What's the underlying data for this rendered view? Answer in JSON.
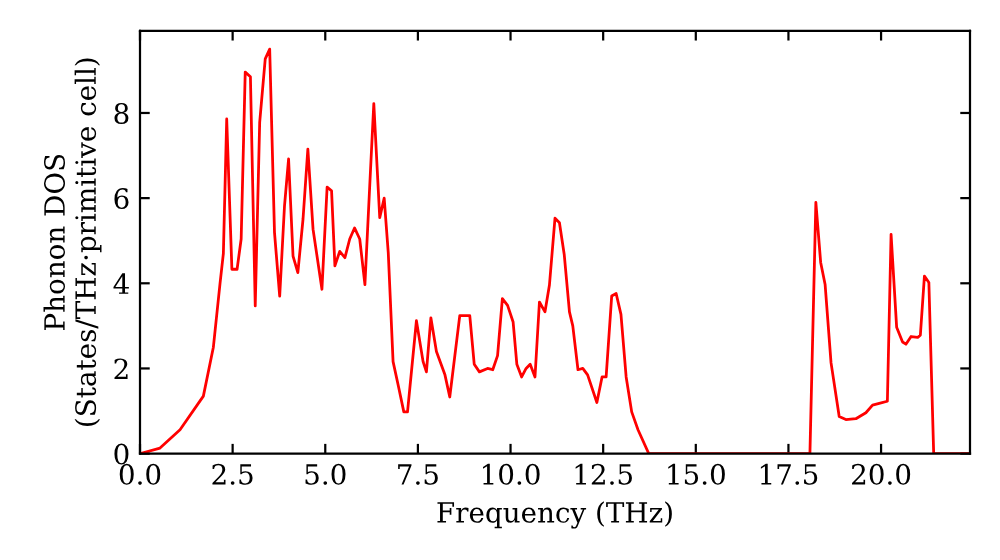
{
  "chart_data": {
    "type": "line",
    "xlabel": "Frequency (THz)",
    "ylabel": "Phonon DOS\n(States/THz·primitive cell)",
    "x": [
      0,
      0.54,
      1.08,
      1.71,
      1.98,
      2.16,
      2.25,
      2.34,
      2.48,
      2.62,
      2.73,
      2.84,
      2.98,
      3.11,
      3.23,
      3.38,
      3.5,
      3.63,
      3.77,
      3.9,
      4.01,
      4.13,
      4.26,
      4.4,
      4.53,
      4.67,
      4.91,
      5.05,
      5.17,
      5.26,
      5.39,
      5.53,
      5.66,
      5.79,
      5.93,
      6.07,
      6.2,
      6.31,
      6.47,
      6.59,
      6.7,
      6.83,
      6.97,
      7.12,
      7.22,
      7.46,
      7.64,
      7.73,
      7.85,
      8.0,
      8.23,
      8.36,
      8.63,
      8.9,
      9.02,
      9.16,
      9.38,
      9.52,
      9.65,
      9.78,
      9.92,
      10.07,
      10.17,
      10.3,
      10.42,
      10.53,
      10.66,
      10.78,
      10.93,
      11.05,
      11.2,
      11.32,
      11.45,
      11.59,
      11.68,
      11.82,
      11.95,
      12.08,
      12.33,
      12.47,
      12.58,
      12.73,
      12.85,
      12.98,
      13.12,
      13.27,
      13.44,
      13.73,
      18.08,
      18.24,
      18.37,
      18.49,
      18.65,
      18.87,
      19.05,
      19.32,
      19.59,
      19.77,
      19.95,
      20.17,
      20.27,
      20.42,
      20.58,
      20.67,
      20.81,
      20.99,
      21.06,
      21.17,
      21.29,
      21.42,
      22.4
    ],
    "series": [
      {
        "color": "#ff0000",
        "values": [
          0,
          0.13,
          0.56,
          1.35,
          2.5,
          4.0,
          4.7,
          7.86,
          4.33,
          4.33,
          5.04,
          8.96,
          8.85,
          3.47,
          7.78,
          9.27,
          9.5,
          5.19,
          3.7,
          5.82,
          6.92,
          4.64,
          4.25,
          5.51,
          7.15,
          5.27,
          3.86,
          6.26,
          6.17,
          4.41,
          4.75,
          4.6,
          5.04,
          5.3,
          5.04,
          3.97,
          6.29,
          8.22,
          5.54,
          6.0,
          4.72,
          2.16,
          1.6,
          0.98,
          0.98,
          3.12,
          2.16,
          1.92,
          3.19,
          2.4,
          1.85,
          1.33,
          3.24,
          3.24,
          2.1,
          1.92,
          2.0,
          1.97,
          2.3,
          3.64,
          3.48,
          3.09,
          2.1,
          1.8,
          2.0,
          2.1,
          1.8,
          3.56,
          3.33,
          3.96,
          5.53,
          5.42,
          4.67,
          3.33,
          3.0,
          1.97,
          2.0,
          1.85,
          1.2,
          1.8,
          1.8,
          3.7,
          3.76,
          3.27,
          1.8,
          0.98,
          0.56,
          0,
          0,
          5.9,
          4.49,
          3.97,
          2.13,
          0.87,
          0.8,
          0.82,
          0.96,
          1.14,
          1.18,
          1.23,
          5.15,
          2.97,
          2.62,
          2.57,
          2.75,
          2.73,
          2.78,
          4.17,
          4.02,
          0,
          0
        ]
      }
    ],
    "xlim": [
      0,
      22.4
    ],
    "ylim": [
      0,
      9.93
    ],
    "xticks": [
      {
        "value": 0,
        "label": "0.0"
      },
      {
        "value": 2.5,
        "label": "2.5"
      },
      {
        "value": 5,
        "label": "5.0"
      },
      {
        "value": 7.5,
        "label": "7.5"
      },
      {
        "value": 10,
        "label": "10.0"
      },
      {
        "value": 12.5,
        "label": "12.5"
      },
      {
        "value": 15,
        "label": "15.0"
      },
      {
        "value": 17.5,
        "label": "17.5"
      },
      {
        "value": 20,
        "label": "20.0"
      }
    ],
    "yticks": [
      0,
      2,
      4,
      6,
      8
    ],
    "grid": false,
    "legend": false,
    "marker": "none",
    "line_style": "solid"
  }
}
